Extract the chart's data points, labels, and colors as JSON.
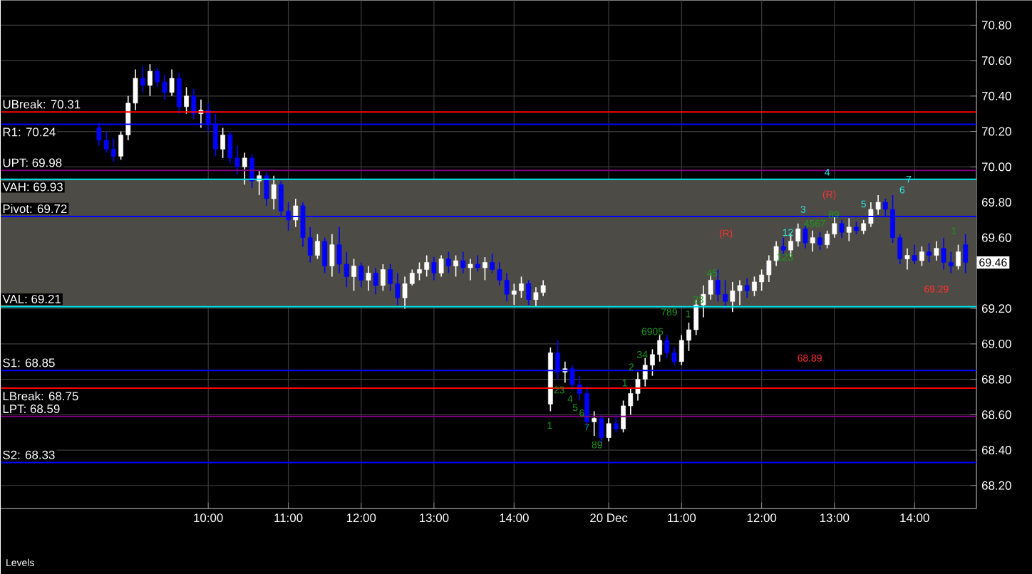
{
  "chart_data": {
    "type": "candlestick",
    "categories": [
      null,
      null,
      null,
      null,
      null,
      null,
      null,
      null,
      null,
      null,
      null,
      null,
      null,
      null,
      null,
      "10:00",
      null,
      null,
      null,
      null,
      null,
      null,
      null,
      null,
      null,
      null,
      "11:00",
      null,
      null,
      null,
      null,
      null,
      null,
      null,
      null,
      null,
      "12:00",
      null,
      null,
      null,
      null,
      null,
      null,
      null,
      null,
      null,
      "13:00",
      null,
      null,
      null,
      null,
      null,
      null,
      null,
      null,
      null,
      null,
      "14:00",
      null,
      null,
      null,
      null,
      null,
      null,
      null,
      null,
      null,
      null,
      null,
      null,
      "20 Dec",
      null,
      null,
      null,
      null,
      null,
      null,
      null,
      null,
      null,
      "11:00",
      null,
      null,
      null,
      null,
      null,
      null,
      null,
      null,
      null,
      null,
      "12:00",
      null,
      null,
      null,
      null,
      null,
      null,
      null,
      null,
      null,
      "13:00",
      null,
      null,
      null,
      null,
      null,
      null,
      null,
      null,
      null,
      null,
      "14:00",
      null,
      null,
      null,
      null,
      null,
      null,
      null
    ],
    "ohlc": [
      [
        70.22,
        70.25,
        70.12,
        70.15
      ],
      [
        70.15,
        70.2,
        70.08,
        70.1
      ],
      [
        70.1,
        70.16,
        70.03,
        70.06
      ],
      [
        70.06,
        70.2,
        70.04,
        70.18
      ],
      [
        70.18,
        70.4,
        70.15,
        70.36
      ],
      [
        70.36,
        70.55,
        70.32,
        70.5
      ],
      [
        70.5,
        70.57,
        70.42,
        70.46
      ],
      [
        70.46,
        70.58,
        70.4,
        70.54
      ],
      [
        70.54,
        70.56,
        70.45,
        70.48
      ],
      [
        70.48,
        70.52,
        70.38,
        70.42
      ],
      [
        70.42,
        70.55,
        70.4,
        70.5
      ],
      [
        70.5,
        70.53,
        70.3,
        70.34
      ],
      [
        70.34,
        70.45,
        70.3,
        70.4
      ],
      [
        70.4,
        70.44,
        70.27,
        70.3
      ],
      [
        70.3,
        70.38,
        70.22,
        70.32
      ],
      [
        70.32,
        70.36,
        70.2,
        70.24
      ],
      [
        70.24,
        70.3,
        70.06,
        70.1
      ],
      [
        70.1,
        70.22,
        70.05,
        70.18
      ],
      [
        70.18,
        70.2,
        70.02,
        70.05
      ],
      [
        70.05,
        70.12,
        69.96,
        70.0
      ],
      [
        70.0,
        70.08,
        69.9,
        70.05
      ],
      [
        70.05,
        70.07,
        69.88,
        69.92
      ],
      [
        69.92,
        69.98,
        69.84,
        69.95
      ],
      [
        69.95,
        69.97,
        69.78,
        69.82
      ],
      [
        69.82,
        69.95,
        69.76,
        69.9
      ],
      [
        69.9,
        69.92,
        69.72,
        69.75
      ],
      [
        69.75,
        69.8,
        69.64,
        69.7
      ],
      [
        69.7,
        69.82,
        69.66,
        69.78
      ],
      [
        69.78,
        69.8,
        69.55,
        69.6
      ],
      [
        69.6,
        69.66,
        69.46,
        69.5
      ],
      [
        69.5,
        69.62,
        69.48,
        69.58
      ],
      [
        69.58,
        69.6,
        69.4,
        69.44
      ],
      [
        69.44,
        69.62,
        69.38,
        69.56
      ],
      [
        69.56,
        69.66,
        69.4,
        69.45
      ],
      [
        69.45,
        69.52,
        69.32,
        69.38
      ],
      [
        69.38,
        69.48,
        69.3,
        69.44
      ],
      [
        69.44,
        69.46,
        69.32,
        69.36
      ],
      [
        69.36,
        69.44,
        69.3,
        69.4
      ],
      [
        69.4,
        69.43,
        69.28,
        69.33
      ],
      [
        69.33,
        69.45,
        69.3,
        69.42
      ],
      [
        69.42,
        69.45,
        69.3,
        69.34
      ],
      [
        69.34,
        69.4,
        69.22,
        69.26
      ],
      [
        69.26,
        69.38,
        69.2,
        69.34
      ],
      [
        69.34,
        69.42,
        69.33,
        69.4
      ],
      [
        69.4,
        69.46,
        69.36,
        69.42
      ],
      [
        69.42,
        69.5,
        69.38,
        69.46
      ],
      [
        69.46,
        69.49,
        69.36,
        69.4
      ],
      [
        69.4,
        69.5,
        69.38,
        69.48
      ],
      [
        69.48,
        69.52,
        69.4,
        69.44
      ],
      [
        69.44,
        69.5,
        69.38,
        69.47
      ],
      [
        69.47,
        69.52,
        69.4,
        69.43
      ],
      [
        69.43,
        69.48,
        69.36,
        69.45
      ],
      [
        69.45,
        69.5,
        69.41,
        69.43
      ],
      [
        69.43,
        69.49,
        69.36,
        69.46
      ],
      [
        69.46,
        69.51,
        69.4,
        69.42
      ],
      [
        69.42,
        69.46,
        69.33,
        69.36
      ],
      [
        69.36,
        69.4,
        69.24,
        69.28
      ],
      [
        69.28,
        69.34,
        69.22,
        69.3
      ],
      [
        69.3,
        69.38,
        69.26,
        69.34
      ],
      [
        69.34,
        69.36,
        69.22,
        69.25
      ],
      [
        69.25,
        69.32,
        69.21,
        69.29
      ],
      [
        69.29,
        69.36,
        69.27,
        69.33
      ],
      [
        68.66,
        68.98,
        68.62,
        68.95
      ],
      [
        68.95,
        69.02,
        68.8,
        68.84
      ],
      [
        68.84,
        68.9,
        68.78,
        68.86
      ],
      [
        68.86,
        68.88,
        68.74,
        68.77
      ],
      [
        68.77,
        68.82,
        68.68,
        68.72
      ],
      [
        68.72,
        68.76,
        68.52,
        68.56
      ],
      [
        68.56,
        68.62,
        68.48,
        68.58
      ],
      [
        68.58,
        68.6,
        68.44,
        68.47
      ],
      [
        68.47,
        68.58,
        68.45,
        68.55
      ],
      [
        68.55,
        68.6,
        68.5,
        68.52
      ],
      [
        68.52,
        68.68,
        68.5,
        68.65
      ],
      [
        68.65,
        68.75,
        68.6,
        68.72
      ],
      [
        68.72,
        68.84,
        68.68,
        68.8
      ],
      [
        68.8,
        68.92,
        68.76,
        68.88
      ],
      [
        68.88,
        68.97,
        68.82,
        68.94
      ],
      [
        68.94,
        69.05,
        68.9,
        69.02
      ],
      [
        69.02,
        69.05,
        68.92,
        68.95
      ],
      [
        68.95,
        68.98,
        68.88,
        68.9
      ],
      [
        68.9,
        69.05,
        68.88,
        69.02
      ],
      [
        69.02,
        69.12,
        68.96,
        69.08
      ],
      [
        69.08,
        69.25,
        69.05,
        69.22
      ],
      [
        69.22,
        69.33,
        69.15,
        69.28
      ],
      [
        69.28,
        69.4,
        69.25,
        69.36
      ],
      [
        69.36,
        69.42,
        69.24,
        69.28
      ],
      [
        69.28,
        69.36,
        69.2,
        69.24
      ],
      [
        69.24,
        69.35,
        69.18,
        69.3
      ],
      [
        69.3,
        69.36,
        69.22,
        69.33
      ],
      [
        69.33,
        69.37,
        69.26,
        69.3
      ],
      [
        69.3,
        69.38,
        69.27,
        69.35
      ],
      [
        69.35,
        69.42,
        69.3,
        69.39
      ],
      [
        69.39,
        69.5,
        69.35,
        69.47
      ],
      [
        69.47,
        69.58,
        69.44,
        69.55
      ],
      [
        69.55,
        69.6,
        69.5,
        69.53
      ],
      [
        69.53,
        69.62,
        69.49,
        69.58
      ],
      [
        69.58,
        69.68,
        69.55,
        69.65
      ],
      [
        69.65,
        69.67,
        69.54,
        69.57
      ],
      [
        69.57,
        69.64,
        69.52,
        69.6
      ],
      [
        69.6,
        69.63,
        69.53,
        69.56
      ],
      [
        69.56,
        69.64,
        69.54,
        69.62
      ],
      [
        69.62,
        69.72,
        69.6,
        69.68
      ],
      [
        69.68,
        69.7,
        69.6,
        69.63
      ],
      [
        69.63,
        69.71,
        69.58,
        69.66
      ],
      [
        69.66,
        69.69,
        69.62,
        69.64
      ],
      [
        69.64,
        69.7,
        69.62,
        69.68
      ],
      [
        69.68,
        69.8,
        69.66,
        69.76
      ],
      [
        69.76,
        69.84,
        69.73,
        69.8
      ],
      [
        69.8,
        69.82,
        69.72,
        69.76
      ],
      [
        69.76,
        69.84,
        69.57,
        69.6
      ],
      [
        69.6,
        69.62,
        69.45,
        69.48
      ],
      [
        69.48,
        69.54,
        69.42,
        69.5
      ],
      [
        69.5,
        69.56,
        69.45,
        69.47
      ],
      [
        69.47,
        69.55,
        69.44,
        69.52
      ],
      [
        69.52,
        69.57,
        69.46,
        69.5
      ],
      [
        69.5,
        69.58,
        69.47,
        69.54
      ],
      [
        69.54,
        69.6,
        69.42,
        69.46
      ],
      [
        69.46,
        69.52,
        69.4,
        69.44
      ],
      [
        69.44,
        69.56,
        69.42,
        69.52
      ],
      [
        69.56,
        69.62,
        69.4,
        69.46
      ]
    ],
    "ylim": [
      68.07,
      70.94
    ],
    "yticks": [
      {
        "value": 68.2,
        "label": "68.20"
      },
      {
        "value": 68.4,
        "label": "68.40"
      },
      {
        "value": 68.6,
        "label": "68.60"
      },
      {
        "value": 68.8,
        "label": "68.80"
      },
      {
        "value": 69.0,
        "label": "69.00"
      },
      {
        "value": 69.2,
        "label": "69.20"
      },
      {
        "value": 69.4,
        "label": null
      },
      {
        "value": 69.6,
        "label": "69.60"
      },
      {
        "value": 69.8,
        "label": "69.80"
      },
      {
        "value": 70.0,
        "label": "70.00"
      },
      {
        "value": 70.2,
        "label": "70.20"
      },
      {
        "value": 70.4,
        "label": "70.40"
      },
      {
        "value": 70.6,
        "label": "70.60"
      },
      {
        "value": 70.8,
        "label": "70.80"
      }
    ],
    "grid": true,
    "bands": [
      {
        "axis": "y",
        "from": 69.21,
        "to": 69.93,
        "color": "#4d4b45"
      }
    ],
    "ref_lines": [
      {
        "axis": "y",
        "value": 70.31,
        "label": "UBreak: 70.31",
        "color": "#ff0000"
      },
      {
        "axis": "y",
        "value": 70.24,
        "label": "R1: 70.24",
        "color": "#0000ff"
      },
      {
        "axis": "y",
        "value": 69.98,
        "label": "UPT: 69.98",
        "color": "#800080"
      },
      {
        "axis": "y",
        "value": 69.93,
        "label": "VAH: 69.93",
        "color": "#00e5ee"
      },
      {
        "axis": "y",
        "value": 69.72,
        "label": "Pivot: 69.72",
        "color": "#0000ff"
      },
      {
        "axis": "y",
        "value": 69.21,
        "label": "VAL: 69.21",
        "color": "#00e5ee"
      },
      {
        "axis": "y",
        "value": 68.85,
        "label": "S1: 68.85",
        "color": "#0000ff"
      },
      {
        "axis": "y",
        "value": 68.75,
        "label": "LBreak: 68.75",
        "color": "#ff0000"
      },
      {
        "axis": "y",
        "value": 68.59,
        "label": "LPT: 68.59",
        "color": "#800080"
      },
      {
        "axis": "y",
        "value": 68.33,
        "label": "S2: 68.33",
        "color": "#0000ff"
      }
    ],
    "annotations": [
      "1",
      "23",
      "4",
      "5",
      "6",
      "7",
      "89",
      "1",
      "2",
      "34",
      "6905",
      "789",
      "1",
      "23",
      "45",
      "(R)",
      "123",
      "12",
      "3",
      "4567",
      "89",
      "(R)",
      "4",
      "5",
      "6",
      "7",
      "1",
      "69.29",
      "68.89",
      "69.46",
      "Levels"
    ]
  }
}
